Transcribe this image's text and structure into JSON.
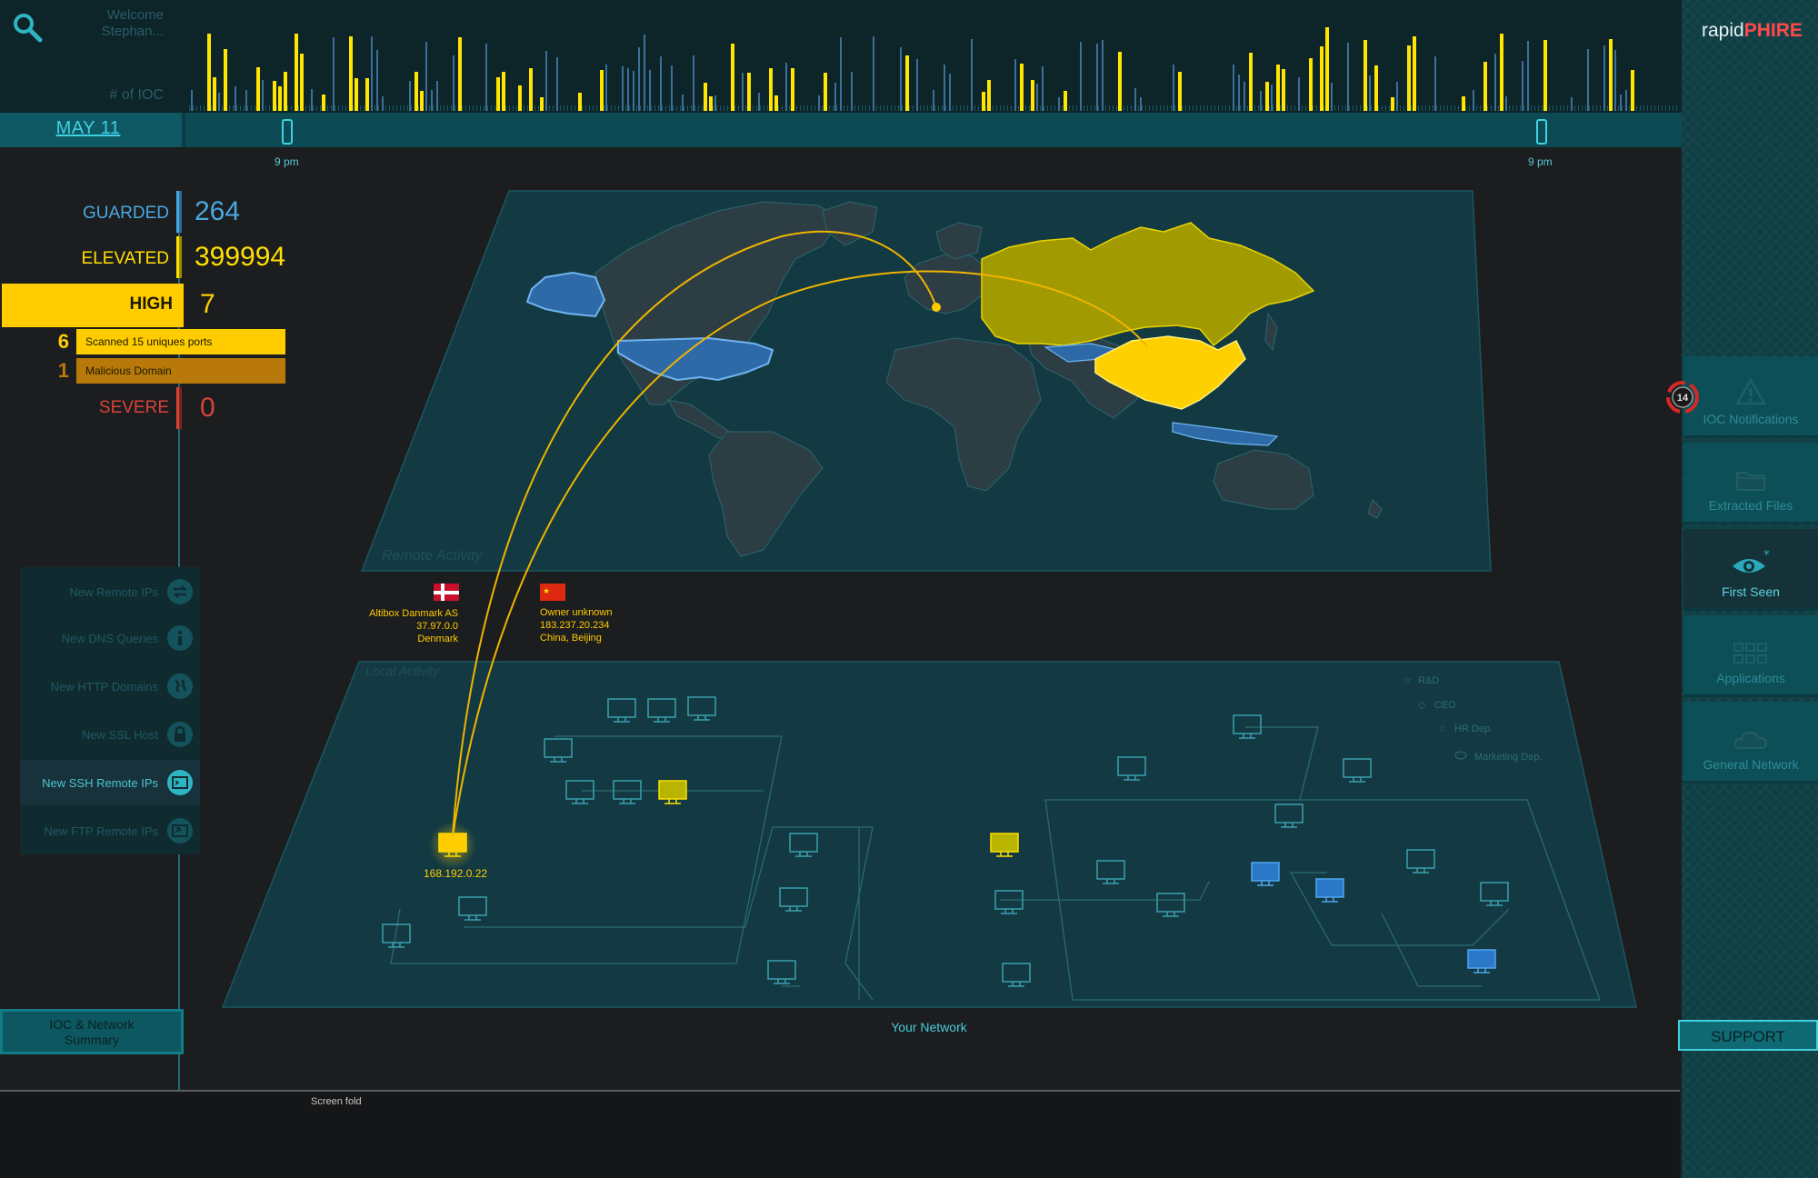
{
  "header": {
    "welcome_line1": "Welcome",
    "welcome_line2": "Stephan...",
    "y_axis_label": "# of IOC",
    "date": "MAY 11",
    "time_marks": [
      "9 pm",
      "9 pm"
    ]
  },
  "brand": {
    "prefix": "rapid",
    "suffix": "PHIRE"
  },
  "threat_levels": {
    "guarded": {
      "label": "GUARDED",
      "value": "264",
      "color": "#4aa8e0"
    },
    "elevated": {
      "label": "ELEVATED",
      "value": "399994",
      "color": "#ffe000"
    },
    "high": {
      "label": "HIGH",
      "value": "7",
      "color": "#ffcc00"
    },
    "severe": {
      "label": "SEVERE",
      "value": "0",
      "color": "#d9423a"
    },
    "high_breakdown": [
      {
        "count": "6",
        "label": "Scanned 15 uniques ports"
      },
      {
        "count": "1",
        "label": "Malicious Domain"
      }
    ]
  },
  "filters": [
    {
      "label": "New Remote IPs",
      "icon": "transfer-icon"
    },
    {
      "label": "New DNS Queries",
      "icon": "info-icon"
    },
    {
      "label": "New HTTP Domains",
      "icon": "globe-icon"
    },
    {
      "label": "New SSL Host",
      "icon": "lock-icon"
    },
    {
      "label": "New SSH Remote IPs",
      "icon": "terminal-icon"
    },
    {
      "label": "New FTP Remote IPs",
      "icon": "ftp-icon"
    }
  ],
  "summary_button": {
    "line1": "IOC & Network",
    "line2": "Summary"
  },
  "map": {
    "remote_label": "Remote Activity",
    "local_label": "Local Activity",
    "remote_hosts": [
      {
        "name": "Altibox Danmark AS",
        "ip": "37.97.0.0",
        "location": "Denmark",
        "flag": "denmark"
      },
      {
        "name": "Owner unknown",
        "ip": "183.237.20.234",
        "location": "China, Beijing",
        "flag": "china"
      }
    ],
    "local_ip": "168.192.0.22",
    "legend": [
      "R&D",
      "CEO",
      "HR Dep.",
      "Marketing Dep."
    ],
    "network_label": "Your Network"
  },
  "sidebar": {
    "notification_count": "14",
    "items": [
      {
        "label": "IOC Notifications",
        "icon": "warning-triangle-icon"
      },
      {
        "label": "Extracted Files",
        "icon": "folder-icon"
      },
      {
        "label": "First Seen",
        "icon": "eye-icon"
      },
      {
        "label": "Applications",
        "icon": "grid-icon"
      },
      {
        "label": "General Network",
        "icon": "cloud-icon"
      }
    ],
    "support_label": "SUPPORT"
  },
  "footer": {
    "fold_label": "Screen fold"
  }
}
